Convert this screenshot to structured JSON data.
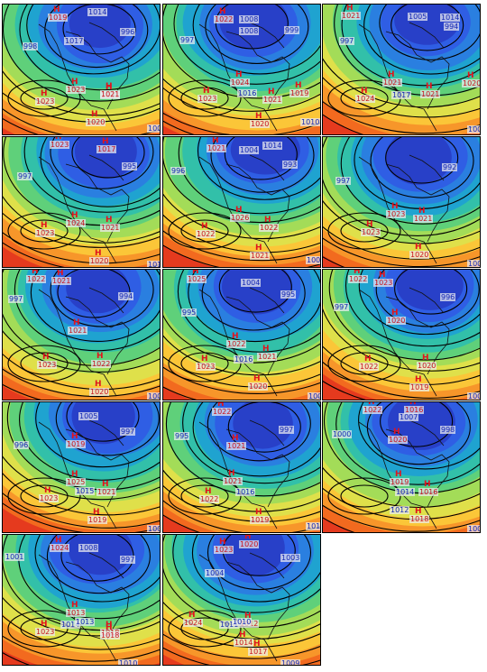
{
  "colors": {
    "high": "#c8141e",
    "low": "#1428b4"
  },
  "panels": [
    {
      "highs": [
        "1019",
        "1021",
        "1023",
        "1023",
        "1021",
        "1020"
      ],
      "lows": [
        "1014",
        "998",
        "1017",
        "996",
        "1009"
      ]
    },
    {
      "highs": [
        "1022",
        "1024",
        "1023",
        "1021",
        "1019",
        "1020"
      ],
      "lows": [
        "1008",
        "1008",
        "999",
        "997",
        "1016",
        "1010"
      ]
    },
    {
      "highs": [
        "1021",
        "1024",
        "1021",
        "1021",
        "1020"
      ],
      "lows": [
        "1005",
        "1014",
        "994",
        "997",
        "1017",
        "1009"
      ]
    },
    {
      "highs": [
        "1023",
        "1017",
        "1024",
        "1023",
        "1021",
        "1020"
      ],
      "lows": [
        "995",
        "997",
        "1010"
      ]
    },
    {
      "highs": [
        "1021",
        "1026",
        "1022",
        "1022",
        "1021"
      ],
      "lows": [
        "1004",
        "1014",
        "993",
        "996",
        "1009"
      ]
    },
    {
      "highs": [
        "1023",
        "1021",
        "1023",
        "1020"
      ],
      "lows": [
        "992",
        "997",
        "1009"
      ]
    },
    {
      "highs": [
        "1022",
        "1021",
        "1021",
        "1023",
        "1022",
        "1020"
      ],
      "lows": [
        "994",
        "997",
        "1009"
      ]
    },
    {
      "highs": [
        "1025",
        "1022",
        "1023",
        "1021",
        "1020"
      ],
      "lows": [
        "1004",
        "995",
        "995",
        "1016",
        "1009"
      ]
    },
    {
      "highs": [
        "1022",
        "1023",
        "1020",
        "1022",
        "1020",
        "1019"
      ],
      "lows": [
        "996",
        "997",
        "1009"
      ]
    },
    {
      "highs": [
        "1019",
        "1025",
        "1023",
        "1021",
        "1019"
      ],
      "lows": [
        "1005",
        "997",
        "996",
        "1015",
        "1009"
      ]
    },
    {
      "highs": [
        "1022",
        "1021",
        "1021",
        "1022",
        "1019"
      ],
      "lows": [
        "997",
        "995",
        "1016",
        "1010"
      ]
    },
    {
      "highs": [
        "1022",
        "1016",
        "1020",
        "1019",
        "1016",
        "1018"
      ],
      "lows": [
        "1007",
        "1000",
        "998",
        "1014",
        "1012",
        "1009"
      ]
    },
    {
      "highs": [
        "1024",
        "1023",
        "1013",
        "1018",
        "1018"
      ],
      "lows": [
        "1008",
        "1001",
        "997",
        "1014",
        "1013",
        "1010"
      ]
    },
    {
      "highs": [
        "1020",
        "1023",
        "1024",
        "1012",
        "1014",
        "1017"
      ],
      "lows": [
        "1004",
        "1003",
        "1011",
        "1010",
        "1009"
      ]
    }
  ]
}
